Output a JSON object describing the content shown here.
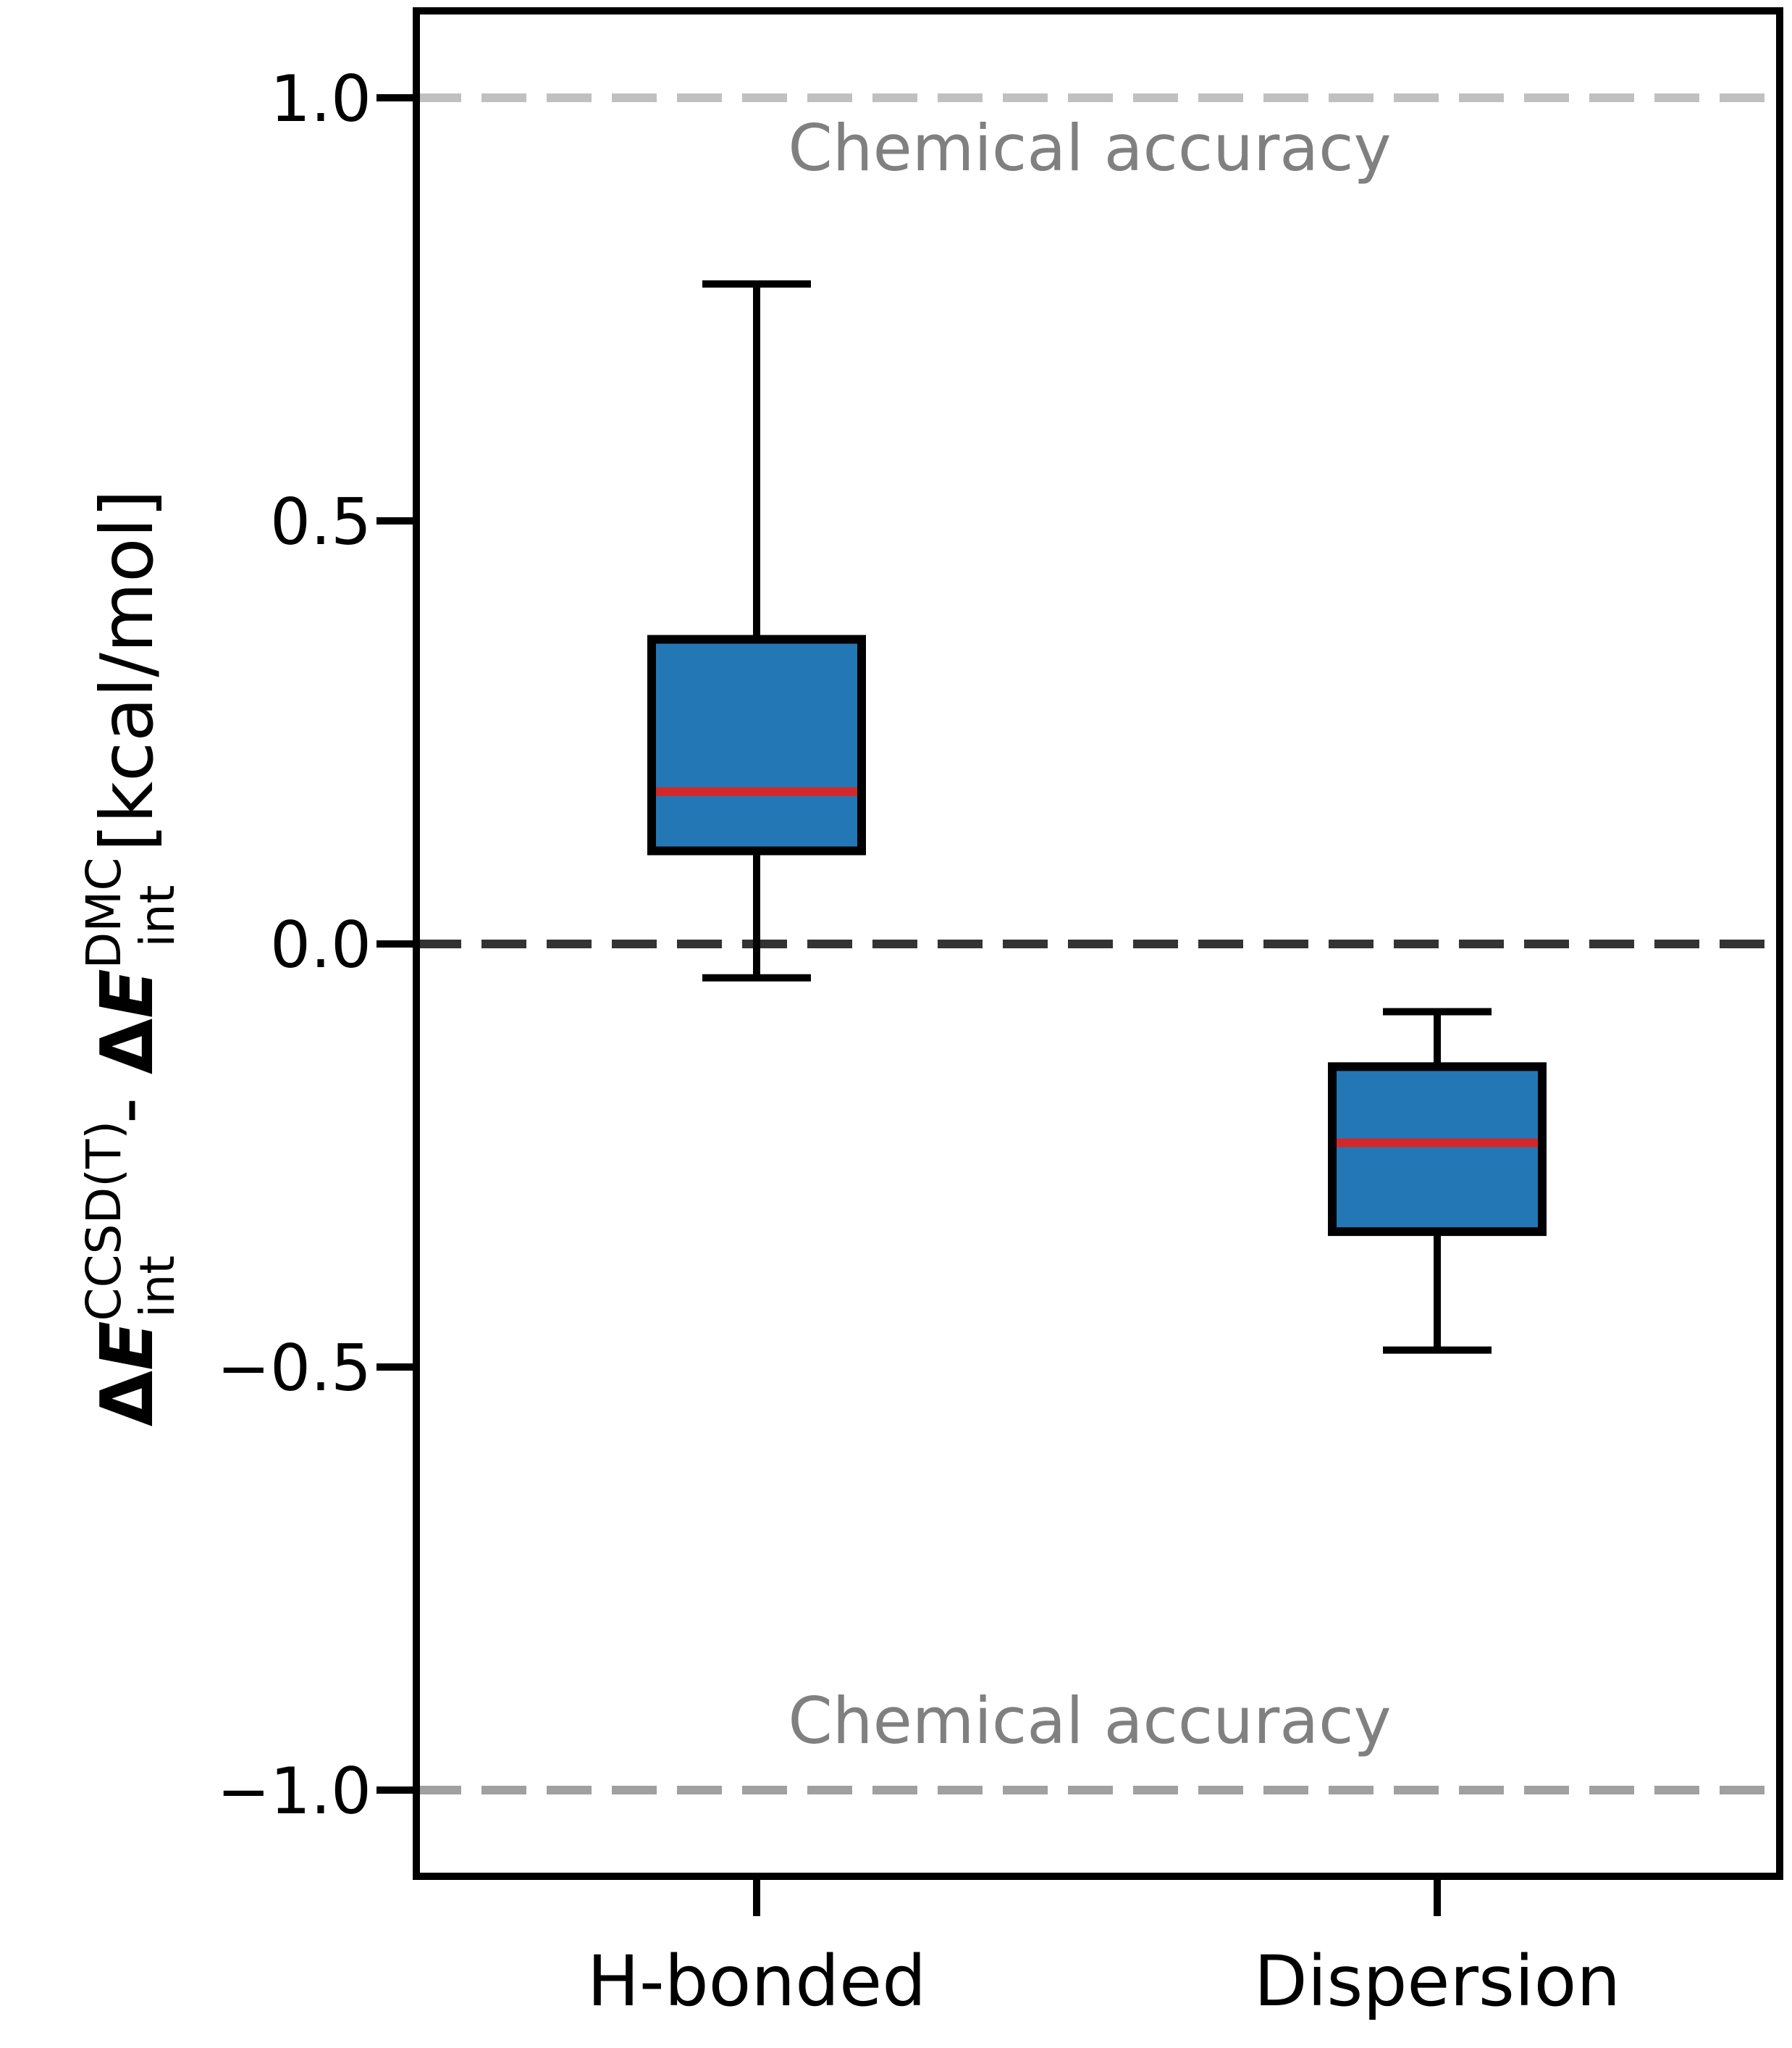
{
  "chart_data": {
    "type": "box",
    "ylabel": {
      "delta1": "Δ",
      "e1": "E",
      "sub1": "int",
      "sup1": "CCSD(T)",
      "minus": " - ",
      "delta2": "Δ",
      "e2": "E",
      "sub2": "int",
      "sup2": "DMC",
      "unit": " [kcal/mol]"
    },
    "ylim": [
      -1.1,
      1.1
    ],
    "yticks": [
      {
        "value": 1.0,
        "label": "1.0"
      },
      {
        "value": 0.5,
        "label": "0.5"
      },
      {
        "value": 0.0,
        "label": "0.0"
      },
      {
        "value": -0.5,
        "label": "−0.5"
      },
      {
        "value": -1.0,
        "label": "−1.0"
      }
    ],
    "categories": [
      "H-bonded",
      "Dispersion"
    ],
    "boxes": [
      {
        "category": "H-bonded",
        "whisker_low": -0.04,
        "q1": 0.11,
        "median": 0.18,
        "q3": 0.36,
        "whisker_high": 0.78
      },
      {
        "category": "Dispersion",
        "whisker_low": -0.48,
        "q1": -0.34,
        "median": -0.235,
        "q3": -0.145,
        "whisker_high": -0.08
      }
    ],
    "reference_lines": [
      {
        "value": 1.0,
        "color": "#c0c0c0",
        "style": "dashed",
        "label": "Chemical accuracy"
      },
      {
        "value": 0.0,
        "color": "#333333",
        "style": "dashed",
        "label": ""
      },
      {
        "value": -1.0,
        "color": "#a0a0a0",
        "style": "dashed",
        "label": "Chemical accuracy"
      }
    ],
    "colors": {
      "box_fill": "#2377b4",
      "box_edge": "#000000",
      "median": "#d62728",
      "whisker": "#000000"
    },
    "grid": false,
    "legend": "none"
  }
}
